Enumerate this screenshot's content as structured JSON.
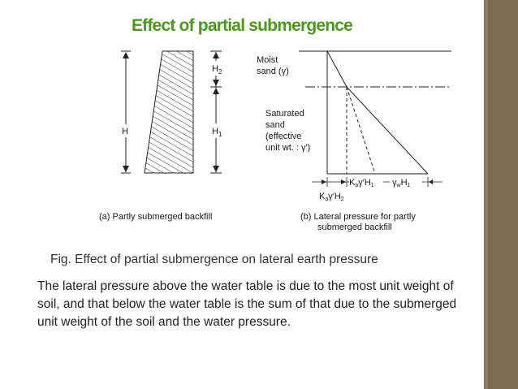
{
  "slide": {
    "title": "Effect of partial submergence",
    "figure_caption": "Fig. Effect of partial submergence on lateral earth pressure",
    "body": "The lateral pressure above the water table is due to the most unit weight of soil, and that below the water table is the sum of that due to the submerged unit weight of the soil and the water pressure."
  },
  "diagram_a": {
    "label_h": "H",
    "label_h2": "H",
    "label_h2_sub": "2",
    "label_h1": "H",
    "label_h1_sub": "1",
    "caption": "(a) Partly submerged backfill"
  },
  "diagram_b": {
    "moist_line1": "Moist",
    "moist_line2": "sand (γ)",
    "sat_line1": "Saturated",
    "sat_line2": "sand",
    "sat_line3": "(effective",
    "sat_line4": "unit wt. : γ′)",
    "label_ka_h1_prefix": "K",
    "label_ka_h1_sub": "a",
    "label_ka_h1_rest": "γ′H",
    "label_ka_h1_sub2": "1",
    "label_gw_prefix": "γ",
    "label_gw_sub": "w",
    "label_gw_rest": "H",
    "label_gw_sub2": "1",
    "label_ka_h2_prefix": "K",
    "label_ka_h2_sub": "a",
    "label_ka_h2_rest": "γ′H",
    "label_ka_h2_sub2": "2",
    "caption_line1": "(b) Lateral pressure for partly",
    "caption_line2": "submerged backfill"
  },
  "colors": {
    "title": "#4a9a1e",
    "sidebar": "#7a6c55"
  }
}
